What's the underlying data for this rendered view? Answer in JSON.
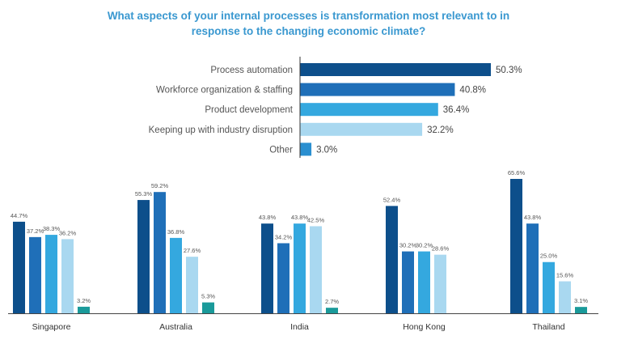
{
  "header": {
    "title_line1": "What aspects of your internal processes is transformation most relevant to in",
    "title_line2": "response to the changing economic climate?"
  },
  "chart_data": [
    {
      "type": "bar",
      "orientation": "horizontal",
      "title": "",
      "categories": [
        "Process automation",
        "Workforce organization & staffing",
        "Product development",
        "Keeping up with industry disruption",
        "Other"
      ],
      "values": [
        50.3,
        40.8,
        36.4,
        32.2,
        3.0
      ],
      "value_labels": [
        "50.3%",
        "40.8%",
        "36.4%",
        "32.2%",
        "3.0%"
      ],
      "colors": [
        "#0d4f8b",
        "#1f6fb8",
        "#34a8df",
        "#a9d8f0",
        "#2a8fd0"
      ],
      "xlim": [
        0,
        50.3
      ]
    },
    {
      "type": "bar",
      "orientation": "vertical",
      "title": "",
      "categories": [
        "Singapore",
        "Australia",
        "India",
        "Hong Kong",
        "Thailand"
      ],
      "series": [
        {
          "values": [
            44.7,
            55.3,
            43.8,
            52.4,
            65.6
          ],
          "labels": [
            "44.7%",
            "55.3%",
            "43.8%",
            "52.4%",
            "65.6%"
          ],
          "color": "#0d4f8b"
        },
        {
          "values": [
            37.2,
            59.2,
            34.2,
            30.2,
            43.8
          ],
          "labels": [
            "37.2%",
            "59.2%",
            "34.2%",
            "30.2%",
            "43.8%"
          ],
          "color": "#1f6fb8"
        },
        {
          "values": [
            38.3,
            36.8,
            43.8,
            30.2,
            25.0
          ],
          "labels": [
            "38.3%",
            "36.8%",
            "43.8%",
            "30.2%",
            "25.0%"
          ],
          "color": "#34a8df"
        },
        {
          "values": [
            36.2,
            27.6,
            42.5,
            28.6,
            15.6
          ],
          "labels": [
            "36.2%",
            "27.6%",
            "42.5%",
            "28.6%",
            "15.6%"
          ],
          "color": "#a9d8f0"
        },
        {
          "values": [
            3.2,
            5.3,
            2.7,
            null,
            3.1
          ],
          "labels": [
            "3.2%",
            "5.3%",
            "2.7%",
            "",
            "3.1%"
          ],
          "color": "#1a9a9a"
        }
      ],
      "ylim": [
        0,
        65.6
      ]
    }
  ]
}
